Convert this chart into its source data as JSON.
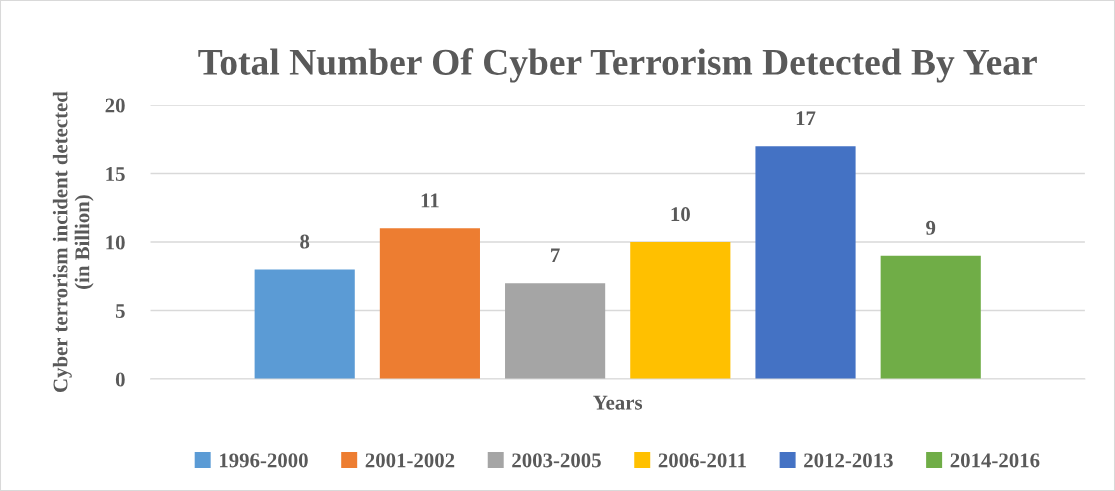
{
  "chart_data": {
    "type": "bar",
    "title": "Total Number Of Cyber Terrorism Detected By Year",
    "xlabel": "Years",
    "ylabel": "Cyber terrorism incident detected\n(in Billion)",
    "categories": [
      null
    ],
    "series": [
      {
        "name": "1996-2000",
        "color": "#5b9bd5",
        "values": [
          8
        ]
      },
      {
        "name": "2001-2002",
        "color": "#ed7d31",
        "values": [
          11
        ]
      },
      {
        "name": "2003-2005",
        "color": "#a5a5a5",
        "values": [
          7
        ]
      },
      {
        "name": "2006-2011",
        "color": "#ffc000",
        "values": [
          10
        ]
      },
      {
        "name": "2012-2013",
        "color": "#4472c4",
        "values": [
          17
        ]
      },
      {
        "name": "2014-2016",
        "color": "#70ad47",
        "values": [
          9
        ]
      }
    ],
    "ylim": [
      0,
      20
    ],
    "yticks": [
      0,
      5,
      10,
      15,
      20
    ],
    "grid": "y",
    "data_labels": true,
    "legend": "bottom"
  }
}
